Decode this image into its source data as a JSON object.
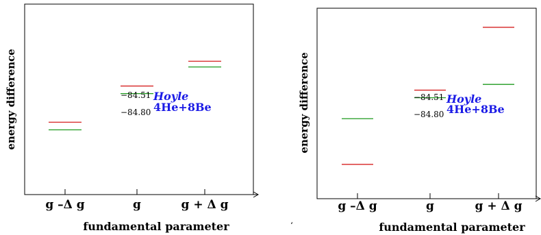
{
  "colors": {
    "hoyle_line": "#d62020",
    "he_line": "#1e9a1e",
    "annotation": "#1a1ae6",
    "axes": "#000000"
  },
  "chart_data": [
    {
      "type": "scatter",
      "panel": "left",
      "ylabel": "energy difference",
      "xlabel": "fundamental parameter",
      "categories": [
        "g –Δ g",
        "g",
        "g + Δ g"
      ],
      "ylim": [
        0,
        1
      ],
      "grid": false,
      "series": [
        {
          "name": "Hoyle",
          "color": "#d62020",
          "values": [
            0.38,
            0.57,
            0.7
          ]
        },
        {
          "name": "4He+8Be",
          "color": "#1e9a1e",
          "values": [
            0.34,
            0.53,
            0.67
          ]
        }
      ],
      "value_labels": {
        "hoyle": "−84.51",
        "he": "−84.80"
      },
      "annotations": {
        "hoyle": "Hoyle",
        "he": "4He+8Be"
      }
    },
    {
      "type": "scatter",
      "panel": "right",
      "ylabel": "energy difference",
      "xlabel": "fundamental parameter",
      "categories": [
        "g –Δ g",
        "g",
        "g + Δ g"
      ],
      "ylim": [
        0,
        1
      ],
      "grid": false,
      "series": [
        {
          "name": "Hoyle",
          "color": "#d62020",
          "values": [
            0.18,
            0.57,
            0.9
          ]
        },
        {
          "name": "4He+8Be",
          "color": "#1e9a1e",
          "values": [
            0.42,
            0.53,
            0.6
          ]
        }
      ],
      "value_labels": {
        "hoyle": "−84.51",
        "he": "−84.80"
      },
      "annotations": {
        "hoyle": "Hoyle",
        "he": "4He+8Be"
      }
    }
  ],
  "stray_mark": "ʻ"
}
